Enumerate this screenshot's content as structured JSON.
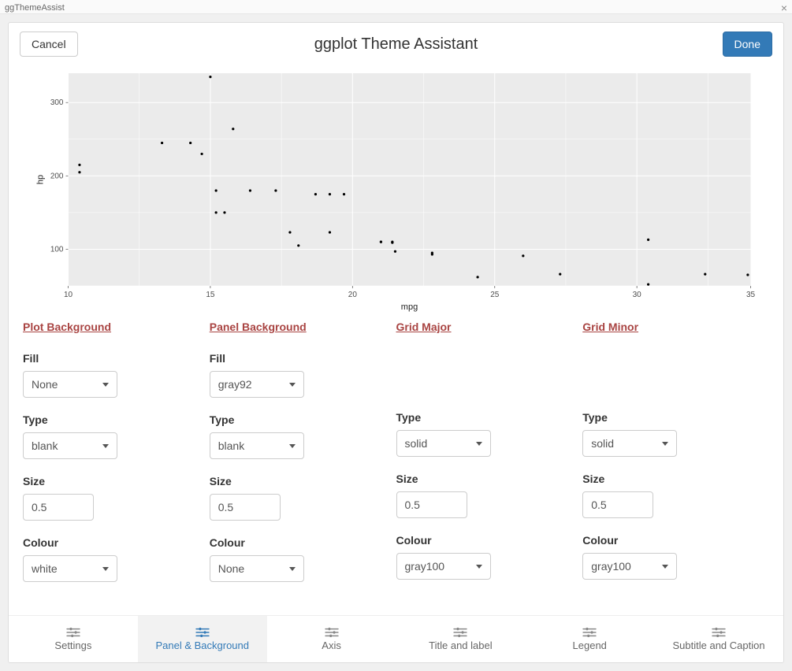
{
  "window": {
    "title": "ggThemeAssist"
  },
  "header": {
    "title": "ggplot Theme Assistant",
    "cancel_label": "Cancel",
    "done_label": "Done"
  },
  "plot": {
    "type": "scatter",
    "xlabel": "mpg",
    "ylabel": "hp",
    "xlim": [
      10,
      34
    ],
    "ylim": [
      50,
      340
    ],
    "xticks": [
      10,
      15,
      20,
      25,
      30,
      35
    ],
    "yticks": [
      100,
      200,
      300
    ],
    "panel_bg": "#ebebeb",
    "plot_bg": "#ffffff",
    "grid_major_color": "#ffffff",
    "grid_minor_color": "#ffffff",
    "tick_label_color": "#4d4d4d",
    "tick_label_fontsize": 10,
    "axis_title_fontsize": 11,
    "point_color": "#000000",
    "point_radius": 1.6,
    "points": [
      [
        21.0,
        110
      ],
      [
        21.0,
        110
      ],
      [
        22.8,
        93
      ],
      [
        21.4,
        110
      ],
      [
        18.7,
        175
      ],
      [
        18.1,
        105
      ],
      [
        14.3,
        245
      ],
      [
        24.4,
        62
      ],
      [
        22.8,
        95
      ],
      [
        19.2,
        123
      ],
      [
        17.8,
        123
      ],
      [
        16.4,
        180
      ],
      [
        17.3,
        180
      ],
      [
        15.2,
        180
      ],
      [
        10.4,
        205
      ],
      [
        10.4,
        215
      ],
      [
        14.7,
        230
      ],
      [
        32.4,
        66
      ],
      [
        30.4,
        52
      ],
      [
        33.9,
        65
      ],
      [
        21.5,
        97
      ],
      [
        15.5,
        150
      ],
      [
        15.2,
        150
      ],
      [
        13.3,
        245
      ],
      [
        19.2,
        175
      ],
      [
        27.3,
        66
      ],
      [
        26.0,
        91
      ],
      [
        30.4,
        113
      ],
      [
        15.8,
        264
      ],
      [
        19.7,
        175
      ],
      [
        15.0,
        335
      ],
      [
        21.4,
        109
      ]
    ]
  },
  "sections": [
    {
      "title": "Plot Background",
      "fields": {
        "fill": {
          "label": "Fill",
          "value": "None"
        },
        "type": {
          "label": "Type",
          "value": "blank"
        },
        "size": {
          "label": "Size",
          "value": "0.5"
        },
        "colour": {
          "label": "Colour",
          "value": "white"
        }
      }
    },
    {
      "title": "Panel Background",
      "fields": {
        "fill": {
          "label": "Fill",
          "value": "gray92"
        },
        "type": {
          "label": "Type",
          "value": "blank"
        },
        "size": {
          "label": "Size",
          "value": "0.5"
        },
        "colour": {
          "label": "Colour",
          "value": "None"
        }
      }
    },
    {
      "title": "Grid Major",
      "fields": {
        "type": {
          "label": "Type",
          "value": "solid"
        },
        "size": {
          "label": "Size",
          "value": "0.5"
        },
        "colour": {
          "label": "Colour",
          "value": "gray100"
        }
      }
    },
    {
      "title": "Grid Minor",
      "fields": {
        "type": {
          "label": "Type",
          "value": "solid"
        },
        "size": {
          "label": "Size",
          "value": "0.5"
        },
        "colour": {
          "label": "Colour",
          "value": "gray100"
        }
      }
    }
  ],
  "tabs": [
    {
      "label": "Settings",
      "active": false
    },
    {
      "label": "Panel & Background",
      "active": true
    },
    {
      "label": "Axis",
      "active": false
    },
    {
      "label": "Title and label",
      "active": false
    },
    {
      "label": "Legend",
      "active": false
    },
    {
      "label": "Subtitle and Caption",
      "active": false
    }
  ]
}
